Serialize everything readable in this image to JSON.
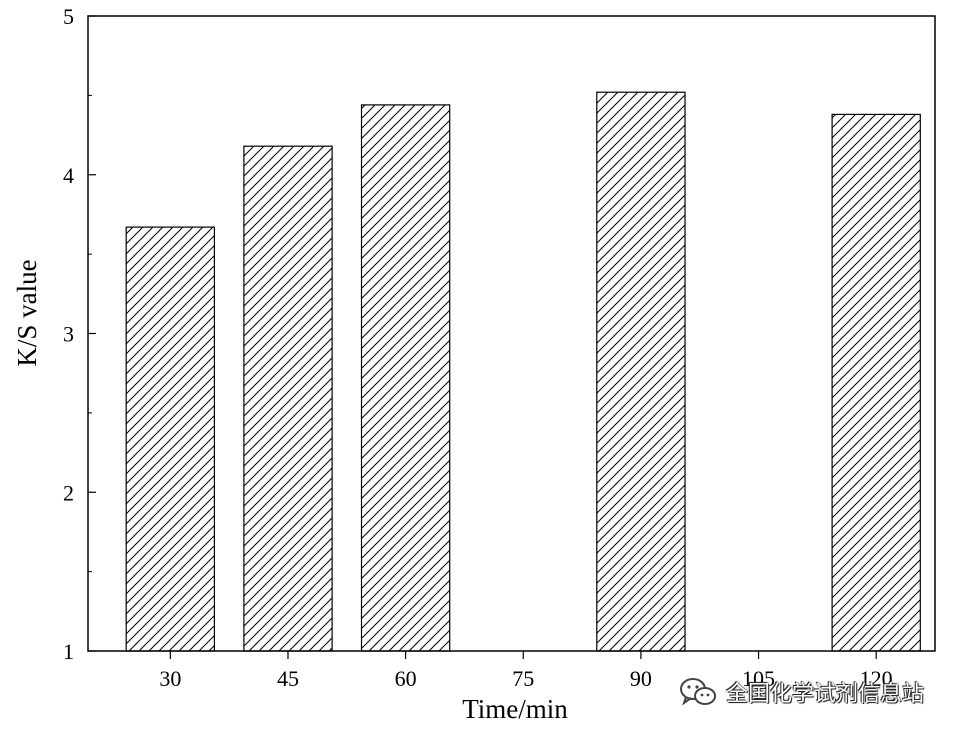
{
  "chart_data": {
    "type": "bar",
    "categories": [
      "30",
      "45",
      "60",
      "75",
      "90",
      "105",
      "120"
    ],
    "values": [
      3.67,
      4.18,
      4.44,
      null,
      4.52,
      null,
      4.38
    ],
    "xlabel": "Time/min",
    "ylabel": "K/S value",
    "ylim": [
      1,
      5
    ],
    "yticks": [
      "1",
      "2",
      "3",
      "4",
      "5"
    ],
    "bar_fill": "hatched",
    "bar_color": "#000000",
    "grid": false,
    "legend": "none"
  },
  "watermark": {
    "icon": "wechat-icon",
    "text": "全国化学试剂信息站"
  }
}
